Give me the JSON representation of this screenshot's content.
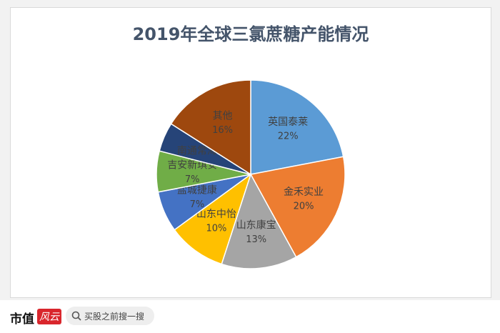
{
  "chart_data": {
    "type": "pie",
    "title": "2019年全球三氯蔗糖产能情况",
    "categories": [
      "英国泰莱",
      "金禾实业",
      "山东康宝",
      "山东中怡",
      "盐城捷康",
      "吉安新琪安",
      "南通常海",
      "其他"
    ],
    "values": [
      22,
      20,
      13,
      10,
      7,
      7,
      5,
      16
    ],
    "value_labels": [
      "22%",
      "20%",
      "13%",
      "10%",
      "7%",
      "7%",
      null,
      "16%"
    ],
    "colors": [
      "#5b9bd5",
      "#ed7d31",
      "#a5a5a5",
      "#ffc000",
      "#4472c4",
      "#70ad47",
      "#264478",
      "#9e480e"
    ]
  },
  "footer": {
    "brand": "市值",
    "brand_mark": "风云",
    "search": "买股之前搜一搜"
  }
}
